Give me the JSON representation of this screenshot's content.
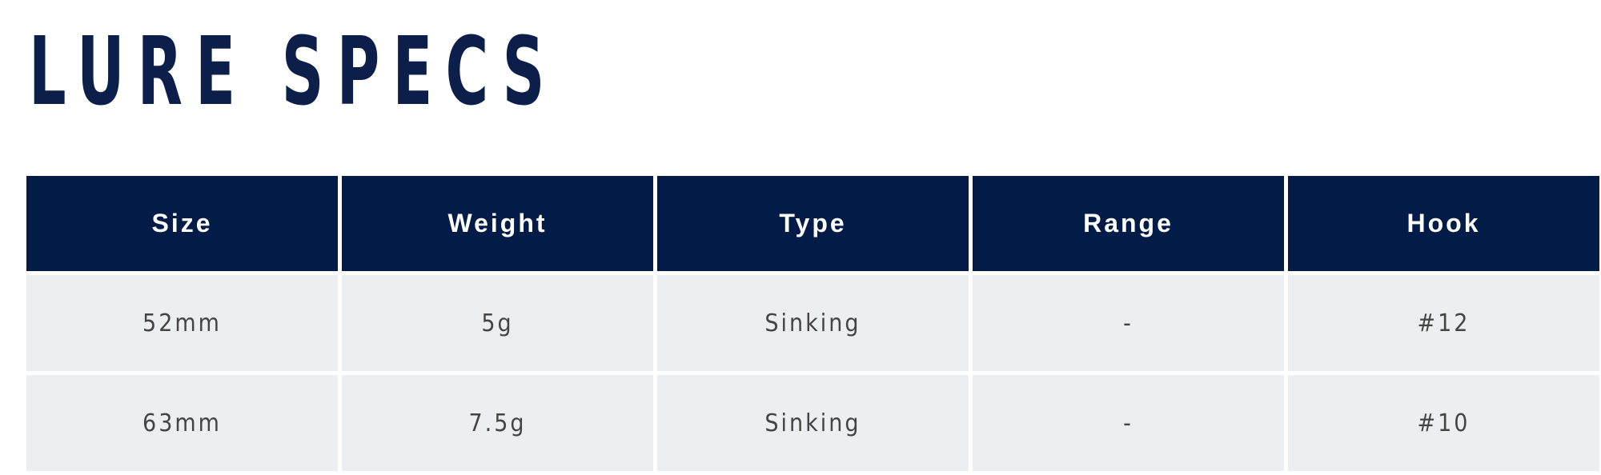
{
  "title": "LURE SPECS",
  "table": {
    "headers": [
      "Size",
      "Weight",
      "Type",
      "Range",
      "Hook"
    ],
    "rows": [
      [
        "52mm",
        "5g",
        "Sinking",
        "-",
        "#12"
      ],
      [
        "63mm",
        "7.5g",
        "Sinking",
        "-",
        "#10"
      ]
    ]
  },
  "colors": {
    "header_bg": "#021b47",
    "row_bg": "#eceff2",
    "title": "#0b1f4a"
  }
}
